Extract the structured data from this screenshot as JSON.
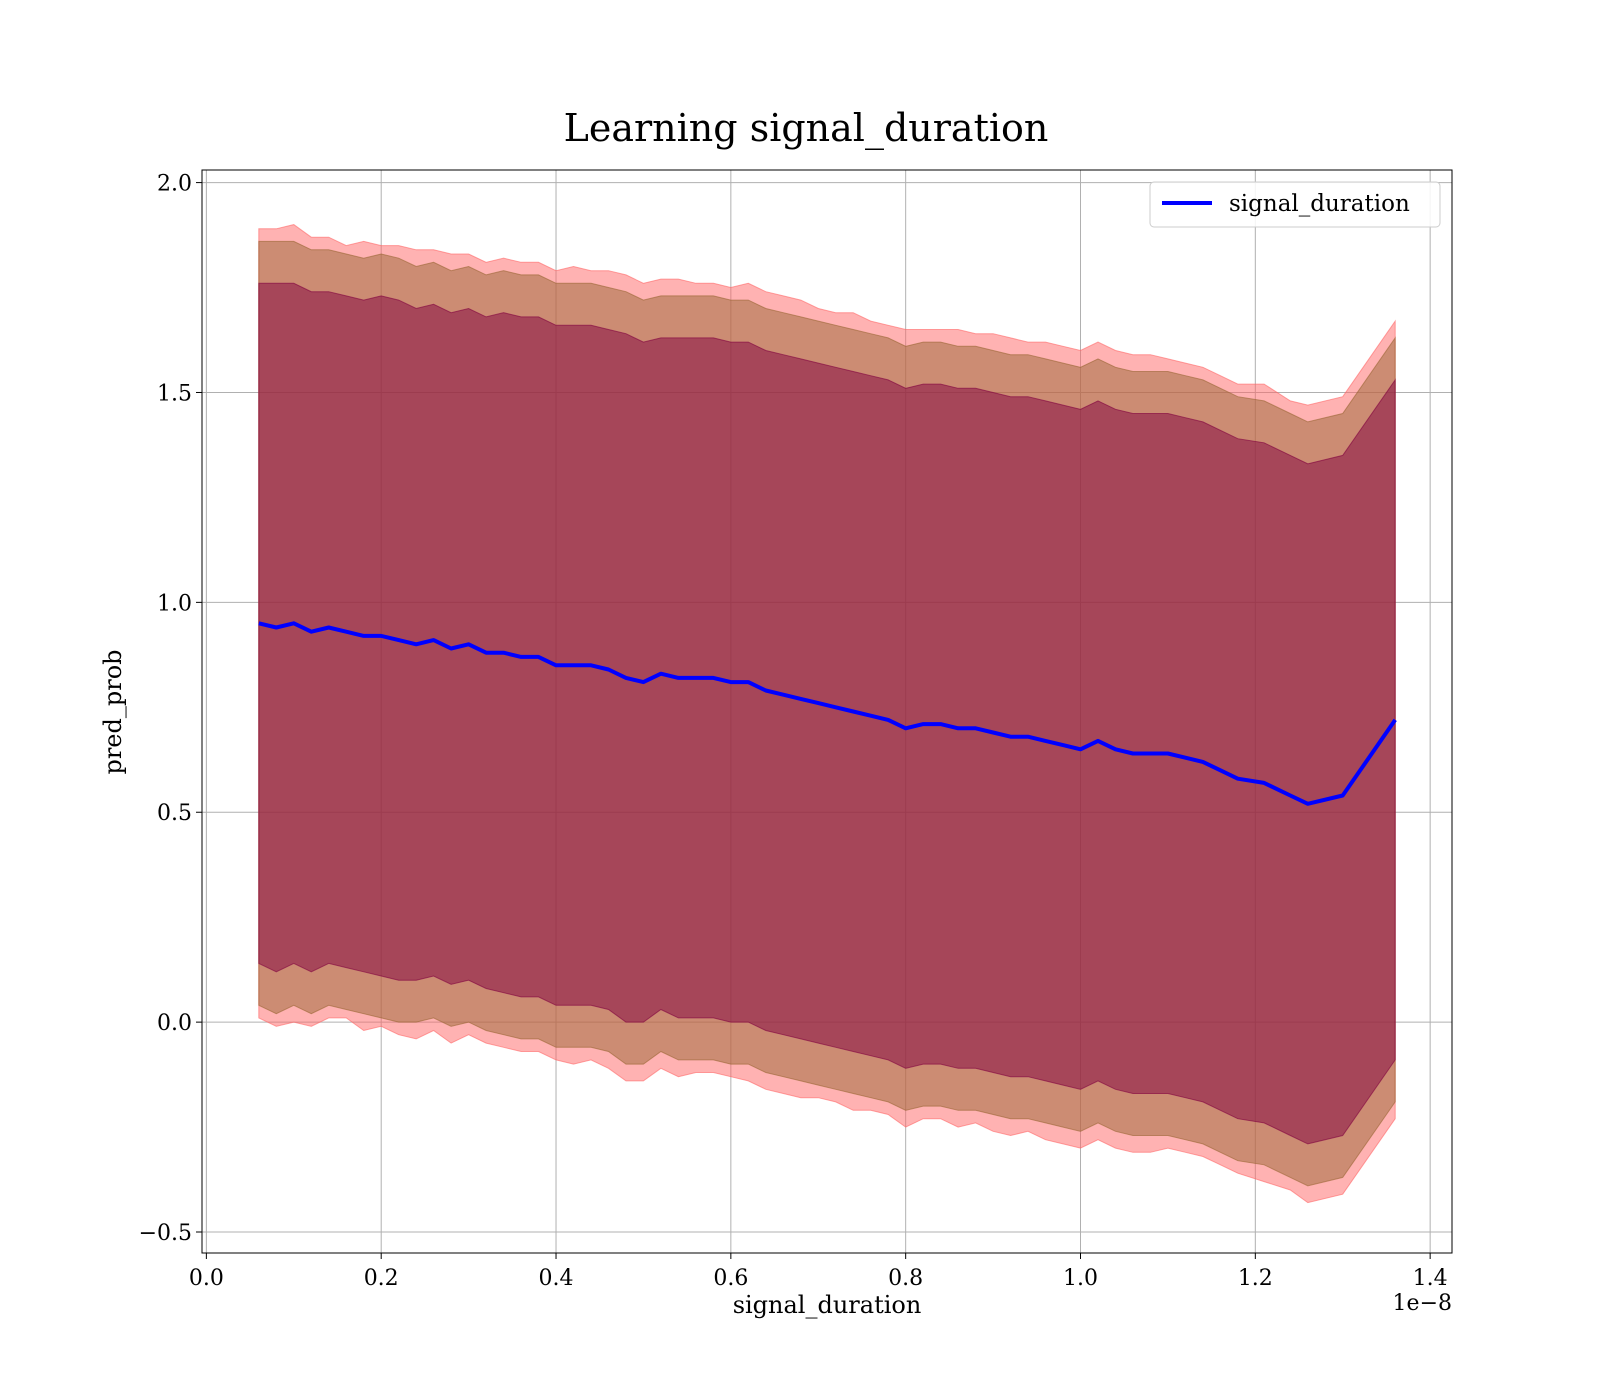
{
  "chart_data": {
    "type": "line",
    "title": "Learning signal_duration",
    "xlabel": "signal_duration",
    "ylabel": "pred_prob",
    "x_offset_label": "1e−8",
    "xlim": [
      -0.005,
      1.425
    ],
    "ylim": [
      -0.55,
      2.03
    ],
    "x_ticks": [
      0.0,
      0.2,
      0.4,
      0.6,
      0.8,
      1.0,
      1.2,
      1.4
    ],
    "x_tick_labels": [
      "0.0",
      "0.2",
      "0.4",
      "0.6",
      "0.8",
      "1.0",
      "1.2",
      "1.4"
    ],
    "y_ticks": [
      -0.5,
      0.0,
      0.5,
      1.0,
      1.5,
      2.0
    ],
    "y_tick_labels": [
      "−0.5",
      "0.0",
      "0.5",
      "1.0",
      "1.5",
      "2.0"
    ],
    "grid": true,
    "legend_position": "top-right",
    "series": [
      {
        "name": "signal_duration",
        "color": "#0000ff",
        "x": [
          0.06,
          0.08,
          0.1,
          0.12,
          0.14,
          0.16,
          0.18,
          0.2,
          0.22,
          0.24,
          0.26,
          0.28,
          0.3,
          0.32,
          0.34,
          0.36,
          0.38,
          0.4,
          0.42,
          0.44,
          0.46,
          0.48,
          0.5,
          0.52,
          0.54,
          0.56,
          0.58,
          0.6,
          0.62,
          0.64,
          0.66,
          0.68,
          0.7,
          0.72,
          0.74,
          0.76,
          0.78,
          0.8,
          0.82,
          0.84,
          0.86,
          0.88,
          0.9,
          0.92,
          0.94,
          0.96,
          0.98,
          1.0,
          1.02,
          1.04,
          1.06,
          1.08,
          1.1,
          1.12,
          1.14,
          1.16,
          1.18,
          1.21,
          1.24,
          1.26,
          1.3,
          1.36
        ],
        "y": [
          0.95,
          0.94,
          0.95,
          0.93,
          0.94,
          0.93,
          0.92,
          0.92,
          0.91,
          0.9,
          0.91,
          0.89,
          0.9,
          0.88,
          0.88,
          0.87,
          0.87,
          0.85,
          0.85,
          0.85,
          0.84,
          0.82,
          0.81,
          0.83,
          0.82,
          0.82,
          0.82,
          0.81,
          0.81,
          0.79,
          0.78,
          0.77,
          0.76,
          0.75,
          0.74,
          0.73,
          0.72,
          0.7,
          0.71,
          0.71,
          0.7,
          0.7,
          0.69,
          0.68,
          0.68,
          0.67,
          0.66,
          0.65,
          0.67,
          0.65,
          0.64,
          0.64,
          0.64,
          0.63,
          0.62,
          0.6,
          0.58,
          0.57,
          0.54,
          0.52,
          0.54,
          0.72
        ]
      }
    ],
    "bands": [
      {
        "color": "#ff6666",
        "opacity": 0.5,
        "upper_offset": [
          0.94,
          0.95,
          0.95,
          0.94,
          0.93,
          0.92,
          0.94,
          0.93,
          0.94,
          0.94,
          0.93,
          0.94,
          0.93,
          0.93,
          0.94,
          0.94,
          0.94,
          0.94,
          0.95,
          0.94,
          0.95,
          0.96,
          0.95,
          0.94,
          0.95,
          0.94,
          0.94,
          0.94,
          0.95,
          0.95,
          0.95,
          0.95,
          0.94,
          0.94,
          0.95,
          0.94,
          0.94,
          0.95,
          0.94,
          0.94,
          0.95,
          0.94,
          0.95,
          0.95,
          0.94,
          0.95,
          0.95,
          0.95,
          0.95,
          0.95,
          0.95,
          0.95,
          0.94,
          0.94,
          0.94,
          0.94,
          0.94,
          0.95,
          0.94,
          0.95,
          0.95,
          0.95
        ]
      },
      {
        "color": "#996633",
        "opacity": 0.5,
        "upper_offset": [
          0.91,
          0.92,
          0.91,
          0.91,
          0.9,
          0.9,
          0.9,
          0.91,
          0.91,
          0.9,
          0.9,
          0.9,
          0.9,
          0.9,
          0.91,
          0.91,
          0.91,
          0.91,
          0.91,
          0.91,
          0.91,
          0.92,
          0.91,
          0.9,
          0.91,
          0.91,
          0.91,
          0.91,
          0.91,
          0.91,
          0.91,
          0.91,
          0.91,
          0.91,
          0.91,
          0.91,
          0.91,
          0.91,
          0.91,
          0.91,
          0.91,
          0.91,
          0.91,
          0.91,
          0.91,
          0.91,
          0.91,
          0.91,
          0.91,
          0.91,
          0.91,
          0.91,
          0.91,
          0.91,
          0.91,
          0.91,
          0.91,
          0.91,
          0.91,
          0.91,
          0.91,
          0.91
        ]
      },
      {
        "color": "#800040",
        "opacity": 0.5,
        "upper_offset": [
          0.81,
          0.82,
          0.81,
          0.81,
          0.8,
          0.8,
          0.8,
          0.81,
          0.81,
          0.8,
          0.8,
          0.8,
          0.8,
          0.8,
          0.81,
          0.81,
          0.81,
          0.81,
          0.81,
          0.81,
          0.81,
          0.82,
          0.81,
          0.8,
          0.81,
          0.81,
          0.81,
          0.81,
          0.81,
          0.81,
          0.81,
          0.81,
          0.81,
          0.81,
          0.81,
          0.81,
          0.81,
          0.81,
          0.81,
          0.81,
          0.81,
          0.81,
          0.81,
          0.81,
          0.81,
          0.81,
          0.81,
          0.81,
          0.81,
          0.81,
          0.81,
          0.81,
          0.81,
          0.81,
          0.81,
          0.81,
          0.81,
          0.81,
          0.81,
          0.81,
          0.81,
          0.81
        ]
      }
    ]
  }
}
